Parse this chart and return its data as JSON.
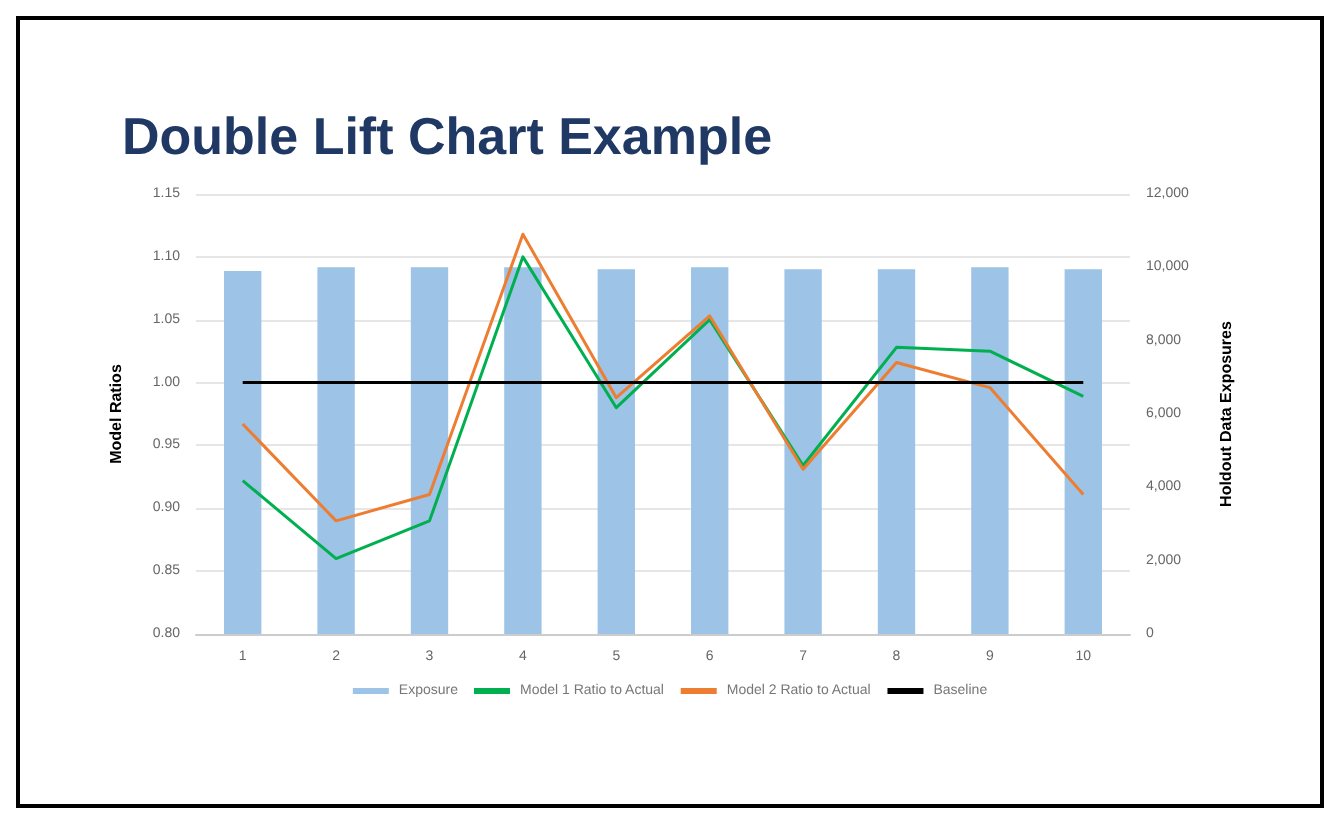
{
  "chart_data": {
    "type": "line",
    "title": "Double Lift Chart Example",
    "ylabel": "Model Ratios",
    "y2label": "Holdout Data Exposures",
    "categories": [
      "1",
      "2",
      "3",
      "4",
      "5",
      "6",
      "7",
      "8",
      "9",
      "10"
    ],
    "series": [
      {
        "name": "Exposure",
        "type": "bar",
        "axis": "y2",
        "color": "#9dc3e6",
        "values": [
          9900,
          10000,
          10000,
          10000,
          9950,
          10000,
          9950,
          9950,
          10000,
          9950
        ]
      },
      {
        "name": "Model 1 Ratio to Actual",
        "color": "#00b050",
        "values": [
          0.922,
          0.86,
          0.89,
          1.1,
          0.98,
          1.05,
          0.934,
          1.028,
          1.025,
          0.989
        ]
      },
      {
        "name": "Model 2 Ratio to Actual",
        "color": "#ed7d31",
        "values": [
          0.967,
          0.89,
          0.911,
          1.118,
          0.988,
          1.053,
          0.931,
          1.016,
          0.996,
          0.911
        ]
      },
      {
        "name": "Baseline",
        "color": "#000000",
        "values": [
          1,
          1,
          1,
          1,
          1,
          1,
          1,
          1,
          1,
          1
        ]
      }
    ],
    "ylim": [
      0.8,
      1.15
    ],
    "yticks": [
      {
        "value": 0.8,
        "label": "0.80"
      },
      {
        "value": 0.85,
        "label": "0.85"
      },
      {
        "value": 0.9,
        "label": "0.90"
      },
      {
        "value": 0.95,
        "label": "0.95"
      },
      {
        "value": 1,
        "label": "1.00"
      },
      {
        "value": 1.05,
        "label": "1.05"
      },
      {
        "value": 1.1,
        "label": "1.10"
      },
      {
        "value": 1.15,
        "label": "1.15"
      }
    ],
    "y2lim": [
      0,
      12000
    ],
    "y2ticks": [
      0,
      {
        "value": 2000,
        "label": "2,000"
      },
      {
        "value": 4000,
        "label": "4,000"
      },
      {
        "value": 6000,
        "label": "6,000"
      },
      {
        "value": 8000,
        "label": "8,000"
      },
      {
        "value": 10000,
        "label": "10,000"
      },
      {
        "value": 12000,
        "label": "12,000"
      }
    ],
    "grid": "y",
    "legend": "bottom",
    "marker": "none",
    "line_style": "solid"
  }
}
